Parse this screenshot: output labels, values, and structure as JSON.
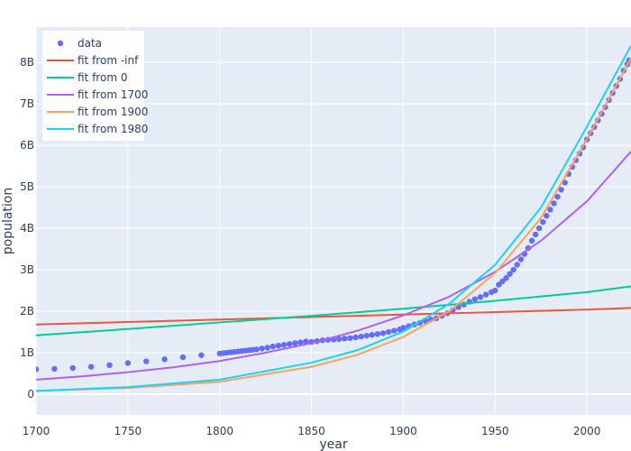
{
  "chart_data": {
    "type": "line",
    "xlabel": "year",
    "ylabel": "population",
    "xlim": [
      1700,
      2024
    ],
    "ylim": [
      -500000000,
      8850000000
    ],
    "x_ticks": [
      1700,
      1750,
      1800,
      1850,
      1900,
      1950,
      2000
    ],
    "y_ticks": [
      {
        "value": 0,
        "label": "0"
      },
      {
        "value": 1000000000,
        "label": "1B"
      },
      {
        "value": 2000000000,
        "label": "2B"
      },
      {
        "value": 3000000000,
        "label": "3B"
      },
      {
        "value": 4000000000,
        "label": "4B"
      },
      {
        "value": 5000000000,
        "label": "5B"
      },
      {
        "value": 6000000000,
        "label": "6B"
      },
      {
        "value": 7000000000,
        "label": "7B"
      },
      {
        "value": 8000000000,
        "label": "8B"
      }
    ],
    "grid": true,
    "legend_position": "top-left",
    "colors": {
      "plot_background": "#e5ecf6",
      "grid": "#ffffff",
      "text": "#2a3f5f"
    },
    "series": [
      {
        "name": "data",
        "mode": "markers",
        "color": "#636efa",
        "x": [
          1700,
          1710,
          1720,
          1730,
          1740,
          1750,
          1760,
          1770,
          1780,
          1790,
          1800,
          1802,
          1804,
          1806,
          1808,
          1810,
          1812,
          1814,
          1816,
          1818,
          1820,
          1823,
          1826,
          1829,
          1832,
          1835,
          1838,
          1841,
          1844,
          1847,
          1850,
          1853,
          1856,
          1859,
          1862,
          1865,
          1868,
          1871,
          1874,
          1877,
          1880,
          1883,
          1886,
          1889,
          1892,
          1895,
          1898,
          1900,
          1903,
          1906,
          1909,
          1912,
          1915,
          1918,
          1921,
          1924,
          1927,
          1930,
          1933,
          1936,
          1939,
          1942,
          1945,
          1948,
          1950,
          1952,
          1954,
          1956,
          1958,
          1960,
          1962,
          1964,
          1966,
          1968,
          1970,
          1972,
          1974,
          1976,
          1978,
          1980,
          1982,
          1984,
          1986,
          1988,
          1990,
          1992,
          1994,
          1996,
          1998,
          2000,
          2002,
          2004,
          2006,
          2008,
          2010,
          2012,
          2014,
          2016,
          2018,
          2020,
          2022,
          2023
        ],
        "y": [
          600000000,
          610000000,
          630000000,
          660000000,
          700000000,
          750000000,
          790000000,
          840000000,
          890000000,
          940000000,
          980000000,
          990000000,
          1000000000,
          1010000000,
          1020000000,
          1030000000,
          1040000000,
          1050000000,
          1060000000,
          1070000000,
          1080000000,
          1100000000,
          1120000000,
          1150000000,
          1170000000,
          1190000000,
          1210000000,
          1230000000,
          1250000000,
          1270000000,
          1260000000,
          1280000000,
          1300000000,
          1310000000,
          1320000000,
          1330000000,
          1340000000,
          1350000000,
          1370000000,
          1390000000,
          1410000000,
          1430000000,
          1450000000,
          1470000000,
          1500000000,
          1530000000,
          1560000000,
          1600000000,
          1640000000,
          1680000000,
          1720000000,
          1770000000,
          1800000000,
          1830000000,
          1890000000,
          1950000000,
          2030000000,
          2100000000,
          2160000000,
          2230000000,
          2290000000,
          2340000000,
          2400000000,
          2460000000,
          2500000000,
          2640000000,
          2720000000,
          2800000000,
          2900000000,
          3000000000,
          3120000000,
          3250000000,
          3380000000,
          3520000000,
          3700000000,
          3850000000,
          4000000000,
          4150000000,
          4300000000,
          4450000000,
          4600000000,
          4760000000,
          4930000000,
          5100000000,
          5310000000,
          5480000000,
          5640000000,
          5800000000,
          5950000000,
          6140000000,
          6290000000,
          6440000000,
          6600000000,
          6760000000,
          6920000000,
          7090000000,
          7260000000,
          7430000000,
          7600000000,
          7800000000,
          7950000000,
          8050000000
        ]
      },
      {
        "name": "fit from -inf",
        "mode": "lines",
        "color": "#ef553b",
        "x": [
          1700,
          1750,
          1800,
          1850,
          1900,
          1950,
          2000,
          2024
        ],
        "y": [
          1680000000,
          1740000000,
          1800000000,
          1860000000,
          1920000000,
          1980000000,
          2040000000,
          2080000000
        ]
      },
      {
        "name": "fit from 0",
        "mode": "lines",
        "color": "#00cc96",
        "x": [
          1700,
          1750,
          1800,
          1850,
          1900,
          1950,
          2000,
          2024
        ],
        "y": [
          1420000000,
          1570000000,
          1730000000,
          1890000000,
          2060000000,
          2250000000,
          2460000000,
          2600000000
        ]
      },
      {
        "name": "fit from 1700",
        "mode": "lines",
        "color": "#ab63fa",
        "x": [
          1700,
          1725,
          1750,
          1775,
          1800,
          1825,
          1850,
          1875,
          1900,
          1925,
          1950,
          1975,
          2000,
          2024
        ],
        "y": [
          350000000,
          430000000,
          530000000,
          650000000,
          800000000,
          1000000000,
          1230000000,
          1530000000,
          1900000000,
          2350000000,
          2950000000,
          3700000000,
          4650000000,
          5850000000
        ]
      },
      {
        "name": "fit from 1900",
        "mode": "lines",
        "color": "#ffa15a",
        "x": [
          1700,
          1750,
          1800,
          1850,
          1875,
          1900,
          1925,
          1950,
          1975,
          2000,
          2024
        ],
        "y": [
          80000000,
          150000000,
          300000000,
          660000000,
          950000000,
          1380000000,
          2000000000,
          2920000000,
          4250000000,
          6150000000,
          8100000000
        ]
      },
      {
        "name": "fit from 1980",
        "mode": "lines",
        "color": "#19d3f3",
        "x": [
          1700,
          1750,
          1800,
          1850,
          1875,
          1900,
          1925,
          1950,
          1975,
          2000,
          2024
        ],
        "y": [
          80000000,
          170000000,
          350000000,
          760000000,
          1060000000,
          1510000000,
          2180000000,
          3120000000,
          4500000000,
          6450000000,
          8400000000
        ]
      }
    ]
  }
}
